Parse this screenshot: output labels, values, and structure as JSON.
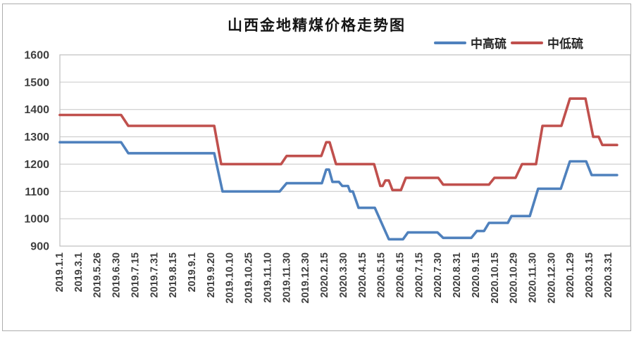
{
  "style": {
    "grid_color": "#c6c6c6",
    "plot_border_color": "#bfbfbf",
    "tick_text_color": "#3f3f3f",
    "frame_border_color": "#adadad",
    "background": "#ffffff"
  },
  "chart_data": {
    "type": "line",
    "title": "山西金地精煤价格走势图",
    "xlabel": "",
    "ylabel": "",
    "grid": true,
    "legend_position": "top-right",
    "y_axis": {
      "min": 900,
      "max": 1600,
      "step": 100
    },
    "categories": [
      "2019.1.1",
      "2019.3.1",
      "2019.5.26",
      "2019.6.30",
      "2019.7.15",
      "2019.7.31",
      "2019.8.15",
      "2019.9.1",
      "2019.9.20",
      "2019.10.10",
      "2019.10.25",
      "2019.11.10",
      "2019.11.30",
      "2019.12.30",
      "2020.2.15",
      "2020.3.30",
      "2020.4.15",
      "2020.5.15",
      "2020.6.15",
      "2020.7.15",
      "2020.7.30",
      "2020.8.31",
      "2020.9.15",
      "2020.10.15",
      "2020.10.29",
      "2020.11.30",
      "2020.12.30",
      "2020.1.29",
      "2020.3.15",
      "2020.3.31"
    ],
    "series": [
      {
        "id": "zhong-gao-liu",
        "name": "中高硫",
        "color": "#4f81bd",
        "approx_values_at_labels": [
          1280,
          1280,
          1280,
          1280,
          1240,
          1240,
          1240,
          1240,
          1240,
          1100,
          1100,
          1100,
          1130,
          1130,
          1180,
          1120,
          1040,
          995,
          925,
          950,
          930,
          930,
          955,
          985,
          1010,
          1110,
          1110,
          1210,
          1160,
          1160
        ],
        "step_points": [
          [
            0.07,
            1280
          ],
          [
            3.31,
            1280
          ],
          [
            3.69,
            1240
          ],
          [
            8.23,
            1240
          ],
          [
            8.67,
            1100
          ],
          [
            11.69,
            1100
          ],
          [
            12.06,
            1130
          ],
          [
            13.92,
            1130
          ],
          [
            14.15,
            1180
          ],
          [
            14.3,
            1180
          ],
          [
            14.48,
            1135
          ],
          [
            14.82,
            1135
          ],
          [
            15.0,
            1120
          ],
          [
            15.3,
            1120
          ],
          [
            15.41,
            1100
          ],
          [
            15.56,
            1100
          ],
          [
            15.86,
            1040
          ],
          [
            16.72,
            1040
          ],
          [
            17.46,
            925
          ],
          [
            18.21,
            925
          ],
          [
            18.47,
            950
          ],
          [
            20.03,
            950
          ],
          [
            20.33,
            930
          ],
          [
            21.82,
            930
          ],
          [
            22.11,
            955
          ],
          [
            22.49,
            955
          ],
          [
            22.75,
            985
          ],
          [
            23.75,
            985
          ],
          [
            23.94,
            1010
          ],
          [
            24.91,
            1010
          ],
          [
            25.35,
            1110
          ],
          [
            26.55,
            1110
          ],
          [
            27.03,
            1210
          ],
          [
            27.89,
            1210
          ],
          [
            28.18,
            1160
          ],
          [
            29.52,
            1160
          ]
        ]
      },
      {
        "id": "zhong-di-liu",
        "name": "中低硫",
        "color": "#c0504d",
        "approx_values_at_labels": [
          1380,
          1380,
          1380,
          1380,
          1340,
          1340,
          1340,
          1340,
          1340,
          1200,
          1200,
          1200,
          1230,
          1230,
          1280,
          1200,
          1200,
          1120,
          1150,
          1150,
          1125,
          1125,
          1125,
          1150,
          1150,
          1200,
          1340,
          1440,
          1300,
          1270
        ],
        "step_points": [
          [
            0.07,
            1380
          ],
          [
            3.31,
            1380
          ],
          [
            3.69,
            1340
          ],
          [
            8.23,
            1340
          ],
          [
            8.6,
            1200
          ],
          [
            11.77,
            1200
          ],
          [
            12.06,
            1230
          ],
          [
            13.89,
            1230
          ],
          [
            14.15,
            1280
          ],
          [
            14.33,
            1280
          ],
          [
            14.67,
            1200
          ],
          [
            16.68,
            1200
          ],
          [
            17.01,
            1120
          ],
          [
            17.13,
            1120
          ],
          [
            17.28,
            1140
          ],
          [
            17.46,
            1140
          ],
          [
            17.65,
            1105
          ],
          [
            18.1,
            1105
          ],
          [
            18.36,
            1150
          ],
          [
            20.07,
            1150
          ],
          [
            20.33,
            1125
          ],
          [
            22.75,
            1125
          ],
          [
            23.04,
            1150
          ],
          [
            24.16,
            1150
          ],
          [
            24.5,
            1200
          ],
          [
            25.24,
            1200
          ],
          [
            25.58,
            1340
          ],
          [
            26.58,
            1340
          ],
          [
            27.03,
            1440
          ],
          [
            27.85,
            1440
          ],
          [
            28.26,
            1300
          ],
          [
            28.55,
            1300
          ],
          [
            28.74,
            1270
          ],
          [
            29.52,
            1270
          ]
        ]
      }
    ]
  }
}
